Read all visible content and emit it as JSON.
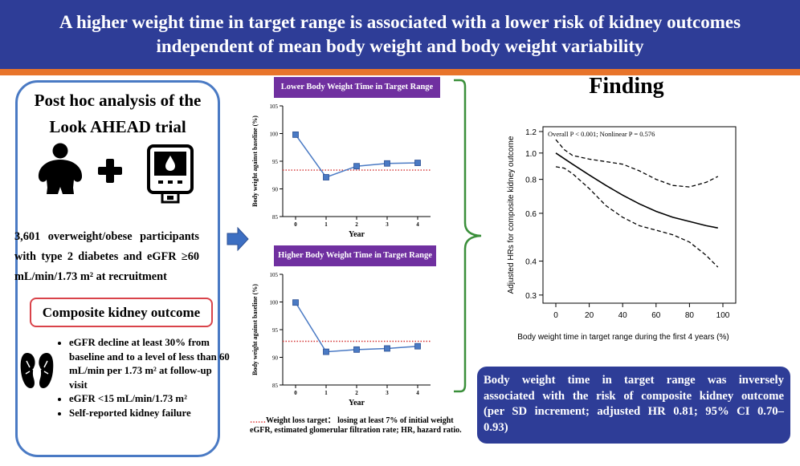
{
  "title": {
    "line1": "A higher weight time in target range is associated with a lower risk of kidney outcomes",
    "line2": "independent of mean body weight and body weight  variability"
  },
  "left_panel": {
    "heading_line1": "Post hoc analysis of the",
    "heading_line2": "Look AHEAD trial",
    "participants_line1": "3,601 overweight/obese participants",
    "participants_line2": "with type 2 diabetes and eGFR ≥60",
    "participants_line3": "mL/min/1.73 m² at recruitment",
    "outcome_title": "Composite kidney outcome",
    "outcome_items": [
      "eGFR decline at least 30% from baseline and to a level of less than 60 mL/min per 1.73 m² at follow-up visit",
      "eGFR <15 mL/min/1.73 m²",
      "Self-reported kidney failure"
    ],
    "icons": [
      "person-icon",
      "plus-icon",
      "glucose-meter-icon",
      "kidney-icon"
    ]
  },
  "finding_title": "Finding",
  "conclusion": {
    "line1": "Body weight time in target range was inversely",
    "line2": "associated with the risk of composite kidney outcome",
    "line3": "(per SD increment; adjusted HR 0.81; 95% CI 0.70–",
    "line4": "0.93)"
  },
  "footnote": {
    "dots": "……",
    "legend": "Weight loss target： losing at least 7% of initial weight",
    "abbr": "eGFR, estimated glomerular filtration rate; HR, hazard ratio."
  },
  "colors": {
    "navy": "#2e3d97",
    "orange": "#e8742b",
    "purple": "#7030a0",
    "green": "#3a8f3a",
    "blue_marker": "#4a7ac4",
    "red_target": "#d33333"
  },
  "chart_data": [
    {
      "type": "line",
      "title": "Lower Body Weight Time in Target Range",
      "xlabel": "Year",
      "ylabel": "Body weight against baseline (%)",
      "x": [
        0,
        1,
        2,
        3,
        4
      ],
      "values": [
        99.8,
        92.1,
        94.1,
        94.6,
        94.7
      ],
      "target_line": 93.4,
      "xlim": [
        0,
        4
      ],
      "ylim": [
        85,
        105
      ],
      "xticks": [
        "0",
        "1",
        "2",
        "3",
        "4"
      ],
      "yticks": [
        "85",
        "90",
        "95",
        "100",
        "105"
      ]
    },
    {
      "type": "line",
      "title": "Higher Body Weight Time in Target Range",
      "xlabel": "Year",
      "ylabel": "Body weight against baseline (%)",
      "x": [
        0,
        1,
        2,
        3,
        4
      ],
      "values": [
        99.9,
        91.0,
        91.4,
        91.6,
        92.0
      ],
      "target_line": 92.9,
      "xlim": [
        0,
        4
      ],
      "ylim": [
        85,
        105
      ],
      "xticks": [
        "0",
        "1",
        "2",
        "3",
        "4"
      ],
      "yticks": [
        "85",
        "90",
        "95",
        "100",
        "105"
      ]
    },
    {
      "type": "line",
      "annotation": "Overall P < 0.001; Nonlinear P = 0.576",
      "xlabel": "Body weight time in target range during the first 4 years (%)",
      "ylabel": "Adjusted HRs for composite kidney outcome",
      "xlim": [
        0,
        100
      ],
      "ylim": [
        0.3,
        1.2
      ],
      "y_scale": "log",
      "xticks": [
        "0",
        "20",
        "40",
        "60",
        "80",
        "100"
      ],
      "yticks": [
        "0.3",
        "0.4",
        "0.6",
        "0.8",
        "1.0",
        "1.2"
      ],
      "series": [
        {
          "name": "HR",
          "x": [
            0,
            10,
            20,
            30,
            40,
            50,
            60,
            70,
            80,
            90,
            97
          ],
          "values": [
            1.0,
            0.91,
            0.83,
            0.76,
            0.7,
            0.65,
            0.61,
            0.58,
            0.56,
            0.54,
            0.53
          ]
        },
        {
          "name": "Upper 95% CI",
          "x": [
            0,
            5,
            10,
            20,
            30,
            40,
            50,
            60,
            70,
            80,
            90,
            97
          ],
          "values": [
            1.12,
            1.03,
            0.98,
            0.95,
            0.93,
            0.91,
            0.86,
            0.8,
            0.76,
            0.75,
            0.78,
            0.82
          ]
        },
        {
          "name": "Lower 95% CI",
          "x": [
            0,
            5,
            10,
            20,
            30,
            40,
            50,
            60,
            70,
            80,
            90,
            97
          ],
          "values": [
            0.89,
            0.88,
            0.84,
            0.74,
            0.64,
            0.58,
            0.54,
            0.52,
            0.5,
            0.47,
            0.42,
            0.38
          ]
        }
      ]
    }
  ]
}
